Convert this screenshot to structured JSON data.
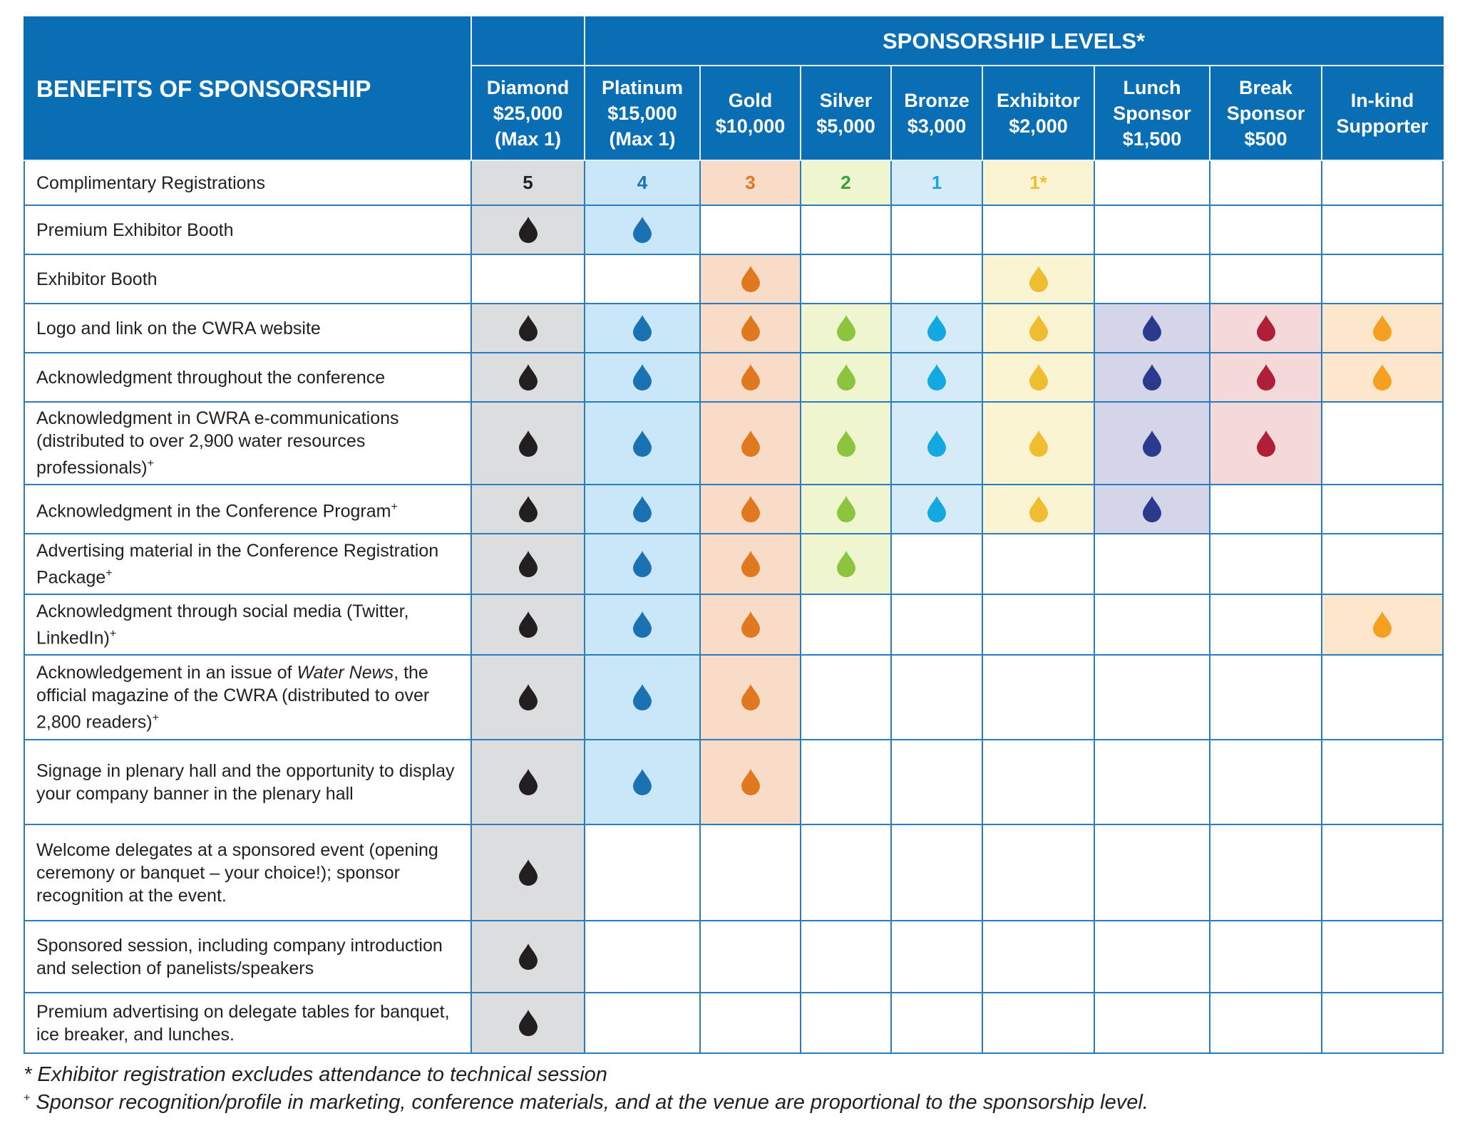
{
  "header": {
    "title": "BENEFITS OF SPONSORSHIP",
    "levels_title": "SPONSORSHIP LEVELS*"
  },
  "columns": [
    {
      "lines": [
        "Diamond",
        "$25,000",
        "(Max 1)"
      ],
      "fill": "#dcdddf",
      "color": "#231f20"
    },
    {
      "lines": [
        "Platinum",
        "$15,000",
        "(Max 1)"
      ],
      "fill": "#c9e7f8",
      "color": "#1a72b2"
    },
    {
      "lines": [
        "Gold",
        "$10,000"
      ],
      "fill": "#f9dcc8",
      "color": "#e07820"
    },
    {
      "lines": [
        "Silver",
        "$5,000"
      ],
      "fill": "#eef5cf",
      "color": "#8cc43f",
      "text_color": "#3aa13a"
    },
    {
      "lines": [
        "Bronze",
        "$3,000"
      ],
      "fill": "#d5ecf8",
      "color": "#13a8e0"
    },
    {
      "lines": [
        "Exhibitor",
        "$2,000"
      ],
      "fill": "#fbf4d2",
      "color": "#eebd30"
    },
    {
      "lines": [
        "Lunch",
        "Sponsor",
        "$1,500"
      ],
      "fill": "#d5d5ea",
      "color": "#2b3a8c"
    },
    {
      "lines": [
        "Break",
        "Sponsor",
        "$500"
      ],
      "fill": "#f4d9d9",
      "color": "#b01f3a"
    },
    {
      "lines": [
        "In-kind",
        "Supporter"
      ],
      "fill": "#fce6cc",
      "color": "#f5a020"
    }
  ],
  "rows": [
    {
      "label": [
        {
          "text": "Complimentary Registrations"
        }
      ],
      "cells": [
        5,
        4,
        3,
        2,
        1,
        "1*",
        null,
        null,
        null
      ]
    },
    {
      "label": [
        {
          "text": "Premium Exhibitor Booth"
        }
      ],
      "cells": [
        true,
        true,
        false,
        false,
        false,
        false,
        false,
        false,
        false
      ]
    },
    {
      "label": [
        {
          "text": "Exhibitor Booth"
        }
      ],
      "cells": [
        false,
        false,
        true,
        false,
        false,
        true,
        false,
        false,
        false
      ]
    },
    {
      "label": [
        {
          "text": "Logo and link on the CWRA website"
        }
      ],
      "cells": [
        true,
        true,
        true,
        true,
        true,
        true,
        true,
        true,
        true
      ]
    },
    {
      "label": [
        {
          "text": "Acknowledgment throughout the conference"
        }
      ],
      "cells": [
        true,
        true,
        true,
        true,
        true,
        true,
        true,
        true,
        true
      ]
    },
    {
      "label": [
        {
          "text": "Acknowledgment in CWRA e-communications (distributed to over 2,900 water resources professionals)"
        }
      ],
      "note": "+",
      "cells": [
        true,
        true,
        true,
        true,
        true,
        true,
        true,
        true,
        false
      ]
    },
    {
      "label": [
        {
          "text": "Acknowledgment in the Conference Program"
        }
      ],
      "note": "+",
      "cells": [
        true,
        true,
        true,
        true,
        true,
        true,
        true,
        false,
        false
      ]
    },
    {
      "label": [
        {
          "text": "Advertising material in the Conference Registration Package"
        }
      ],
      "note": "+",
      "cells": [
        true,
        true,
        true,
        true,
        false,
        false,
        false,
        false,
        false
      ]
    },
    {
      "label": [
        {
          "text": "Acknowledgment through social media (Twitter, LinkedIn)"
        }
      ],
      "note": "+",
      "cells": [
        true,
        true,
        true,
        false,
        false,
        false,
        false,
        false,
        true
      ]
    },
    {
      "label": [
        {
          "text": "Acknowledgement in an issue of "
        },
        {
          "text": "Water News",
          "italic": true
        },
        {
          "text": ", the official magazine of the CWRA (distributed to over 2,800 readers)"
        }
      ],
      "note": "+",
      "cells": [
        true,
        true,
        true,
        false,
        false,
        false,
        false,
        false,
        false
      ]
    },
    {
      "label": [
        {
          "text": "Signage in plenary hall and the opportunity to display your company banner in the plenary hall"
        }
      ],
      "cells": [
        true,
        true,
        true,
        false,
        false,
        false,
        false,
        false,
        false
      ]
    },
    {
      "label": [
        {
          "text": "Welcome delegates at a sponsored event (opening ceremony or banquet – your choice!); sponsor recognition at the event."
        }
      ],
      "cells": [
        true,
        false,
        false,
        false,
        false,
        false,
        false,
        false,
        false
      ]
    },
    {
      "label": [
        {
          "text": "Sponsored session, including company introduction and selection of panelists/speakers"
        }
      ],
      "cells": [
        true,
        false,
        false,
        false,
        false,
        false,
        false,
        false,
        false
      ]
    },
    {
      "label": [
        {
          "text": "Premium advertising on delegate tables for banquet, ice breaker, and lunches."
        }
      ],
      "cells": [
        true,
        false,
        false,
        false,
        false,
        false,
        false,
        false,
        false
      ]
    }
  ],
  "footnotes": [
    {
      "mark": "*",
      "text": "Exhibitor registration excludes attendance to technical session"
    },
    {
      "mark": "+",
      "superscript": true,
      "text": "Sponsor recognition/profile in marketing, conference materials, and at the venue are proportional to the sponsorship level."
    }
  ]
}
